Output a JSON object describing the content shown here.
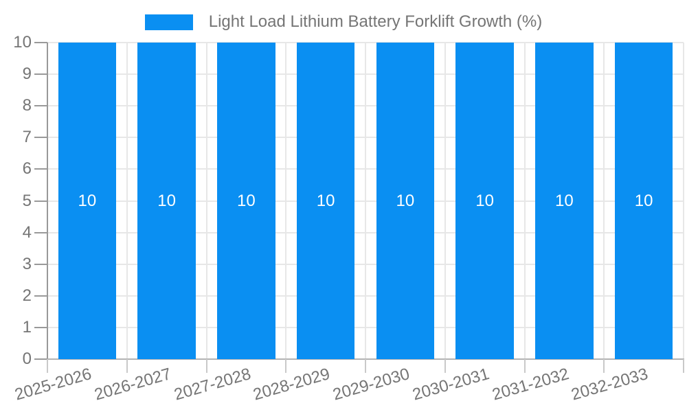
{
  "chart_data": {
    "type": "bar",
    "title": "Light Load Lithium Battery Forklift Growth (%)",
    "legend": {
      "position": "top",
      "entries": [
        "Light Load Lithium Battery Forklift Growth (%)"
      ]
    },
    "categories": [
      "2025-2026",
      "2026-2027",
      "2027-2028",
      "2028-2029",
      "2029-2030",
      "2030-2031",
      "2031-2032",
      "2032-2033"
    ],
    "values": [
      10,
      10,
      10,
      10,
      10,
      10,
      10,
      10
    ],
    "bar_labels": [
      "10",
      "10",
      "10",
      "10",
      "10",
      "10",
      "10",
      "10"
    ],
    "xlabel": "",
    "ylabel": "",
    "ylim": [
      0,
      10
    ],
    "yticks": [
      0,
      1,
      2,
      3,
      4,
      5,
      6,
      7,
      8,
      9,
      10
    ],
    "grid": true,
    "x_label_rotation_deg": -16,
    "colors": {
      "bar": "#0a8ff2",
      "grid": "#e7e7e7",
      "y_axis": "#999999",
      "x_axis": "#b3b3b3",
      "y_tick": "#999999",
      "x_tick": "#c9c9c9",
      "text": "#757575",
      "bar_label": "#ffffff",
      "background": "#ffffff"
    }
  }
}
